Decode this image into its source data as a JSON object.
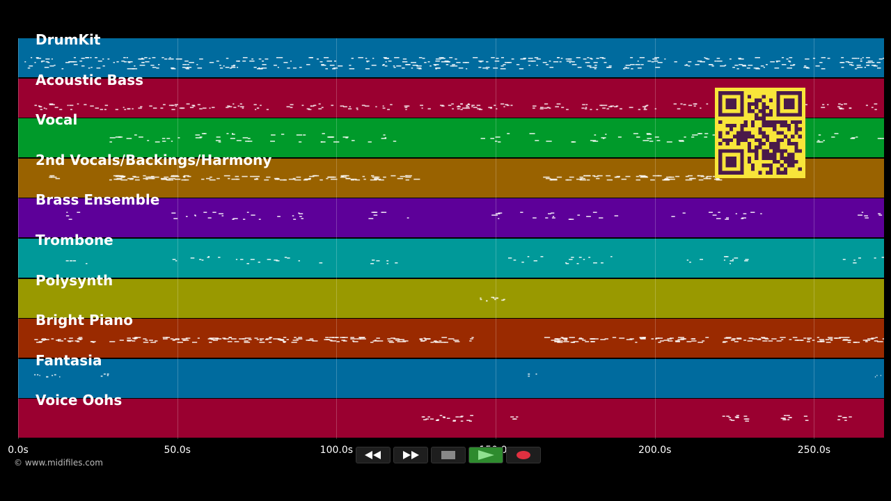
{
  "timeline": {
    "tracks": [
      {
        "name": "DrumKit",
        "color": "#006b9e"
      },
      {
        "name": "Acoustic Bass",
        "color": "#9a0030"
      },
      {
        "name": "Vocal",
        "color": "#009a2a"
      },
      {
        "name": "2nd Vocals/Backings/Harmony",
        "color": "#996200"
      },
      {
        "name": "Brass Ensemble",
        "color": "#5d0099"
      },
      {
        "name": "Trombone",
        "color": "#009999"
      },
      {
        "name": "Polysynth",
        "color": "#999900"
      },
      {
        "name": "Bright Piano",
        "color": "#9a2a00"
      },
      {
        "name": "Fantasia",
        "color": "#006b9e"
      },
      {
        "name": "Voice Oohs",
        "color": "#9a0030"
      }
    ],
    "ticks": [
      "0.0s",
      "50.0s",
      "100.0s",
      "150.0s",
      "200.0s",
      "250.0s"
    ],
    "duration_seconds": 272
  },
  "footer": {
    "copyright": "© www.midifiles.com"
  },
  "transport": {
    "rewind": "rewind-icon",
    "fast_forward": "fast-forward-icon",
    "stop": "stop-icon",
    "play": "play-icon",
    "record": "record-icon",
    "play_active_color": "#2e8b2e",
    "record_color": "#e03040"
  },
  "qr": {
    "fg": "#4a1a4a",
    "bg": "#f8e53a"
  }
}
